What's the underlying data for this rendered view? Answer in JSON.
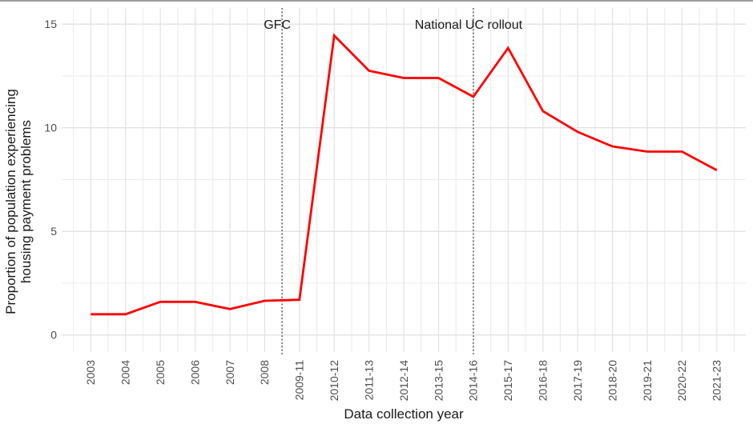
{
  "chart_data": {
    "type": "line",
    "title": "",
    "xlabel": "Data collection year",
    "ylabel_lines": [
      "Proportion of population experiencing",
      "housing payment problems"
    ],
    "categories": [
      "2003",
      "2004",
      "2005",
      "2006",
      "2007",
      "2008",
      "2009-11",
      "2010-12",
      "2011-13",
      "2012-14",
      "2013-15",
      "2014-16",
      "2015-17",
      "2016-18",
      "2017-19",
      "2018-20",
      "2019-21",
      "2020-22",
      "2021-23"
    ],
    "values": [
      1.0,
      1.0,
      1.6,
      1.6,
      1.25,
      1.65,
      1.7,
      14.45,
      12.75,
      12.4,
      12.4,
      11.5,
      13.85,
      10.8,
      9.8,
      9.1,
      8.85,
      8.85,
      7.95
    ],
    "yticks": [
      0,
      5,
      10,
      15
    ],
    "yticks_minor": [
      2.5,
      7.5,
      12.5
    ],
    "ylim": [
      -0.8,
      15.8
    ],
    "grid": "on",
    "legend": "none",
    "annotations": [
      {
        "label": "GFC",
        "x_index": 5.5,
        "line_style": "dotted"
      },
      {
        "label": "National UC rollout",
        "x_index": 11,
        "line_style": "dotted"
      }
    ],
    "colors": {
      "line": "#FF0000",
      "grid_major": "#E2E2E2",
      "grid_minor": "#EDEDED",
      "axis_text": "#4D4D4D",
      "title_text": "#1A1A1A",
      "annotation_text": "#1A1A1A",
      "annotation_line": "#3A3A3A",
      "figure_border": "#7A7A7A",
      "background": "#FFFFFF"
    }
  }
}
